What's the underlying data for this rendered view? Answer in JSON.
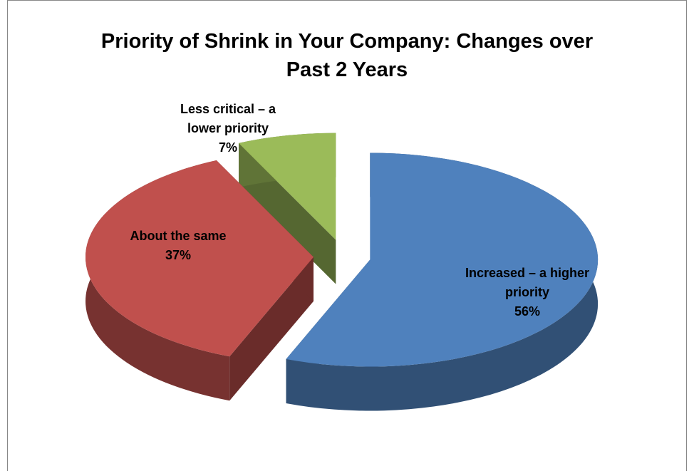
{
  "chart_data": {
    "type": "pie",
    "title": "Priority of Shrink in Your Company:  Changes over Past 2 Years",
    "categories": [
      "Increased – a higher priority",
      "About the same",
      "Less critical – a lower priority"
    ],
    "values": [
      56,
      37,
      7
    ],
    "value_labels": [
      "56%",
      "37%",
      "7%"
    ],
    "colors": [
      "#4f81bd",
      "#c0504d",
      "#9bbb59"
    ]
  }
}
